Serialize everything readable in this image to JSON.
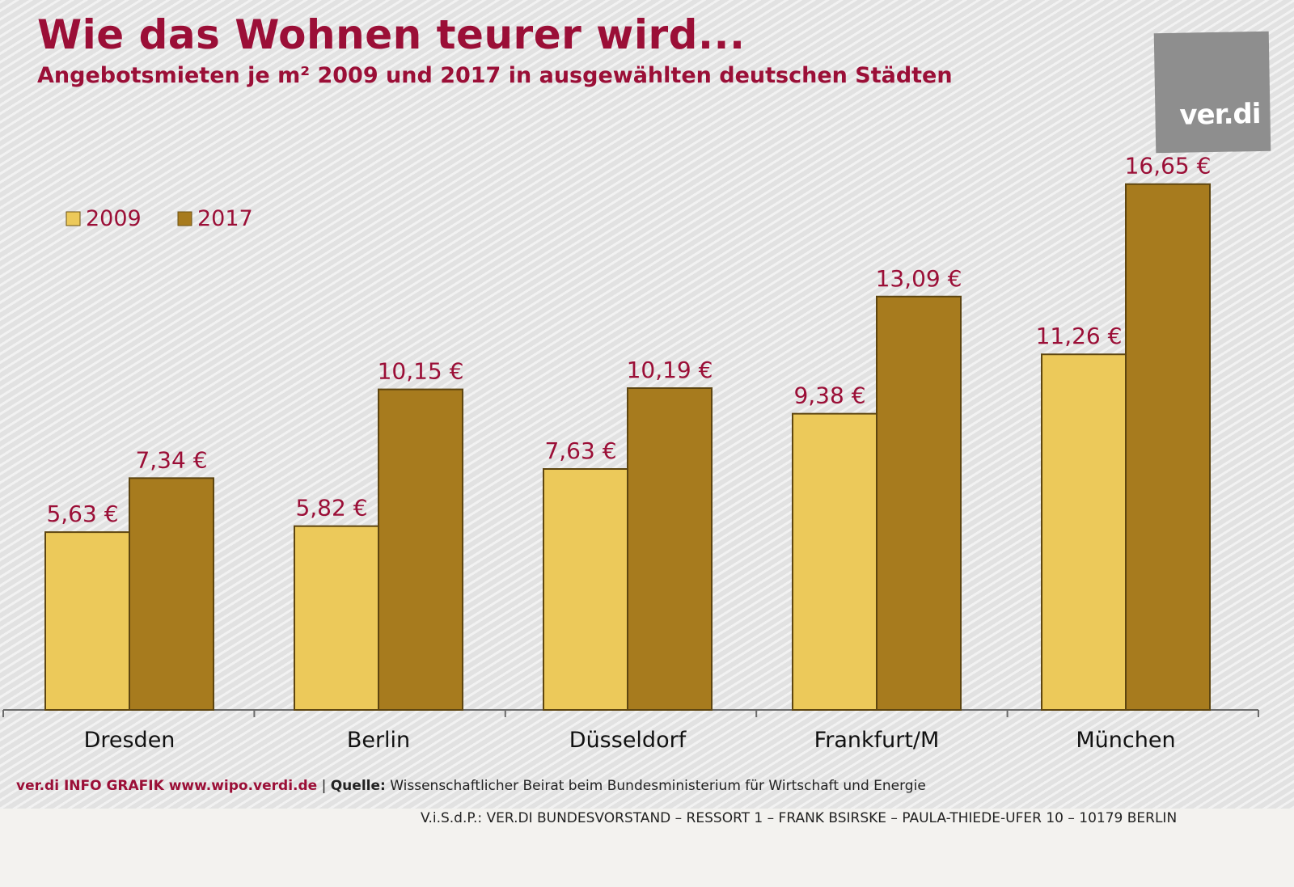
{
  "header": {
    "title": "Wie das Wohnen teurer wird...",
    "subtitle": "Angebotsmieten je m² 2009 und 2017 in ausgewählten deutschen Städten"
  },
  "logo": {
    "text": "ver.di"
  },
  "chart_data": {
    "type": "bar",
    "title": "Wie das Wohnen teurer wird...",
    "subtitle": "Angebotsmieten je m² 2009 und 2017 in ausgewählten deutschen Städten",
    "categories": [
      "Dresden",
      "Berlin",
      "Düsseldorf",
      "Frankfurt/M",
      "München"
    ],
    "series": [
      {
        "name": "2009",
        "color": "#ecc95a",
        "values": [
          5.63,
          5.82,
          7.63,
          9.38,
          11.26
        ],
        "labels": [
          "5,63 €",
          "5,82 €",
          "7,63 €",
          "9,38 €",
          "11,26 €"
        ]
      },
      {
        "name": "2017",
        "color": "#a77b1e",
        "values": [
          7.34,
          10.15,
          10.19,
          13.09,
          16.65
        ],
        "labels": [
          "7,34 €",
          "10,15 €",
          "10,19 €",
          "13,09 €",
          "16,65 €"
        ]
      }
    ],
    "ylim": [
      0,
      18
    ],
    "xlabel": "",
    "ylabel": "",
    "legend": "top-left",
    "grid": false,
    "label_color": "#9b0f37"
  },
  "footer": {
    "brand": "ver.di INFO GRAFIK www.wipo.verdi.de",
    "separator": "|",
    "source_label": "Quelle:",
    "source_text": "Wissenschaftlicher Beirat beim Bundesministerium für Wirtschaft und Energie",
    "imprint": "V.i.S.d.P.: VER.DI BUNDESVORSTAND – RESSORT 1 – FRANK BSIRSKE – PAULA-THIEDE-UFER 10 – 10179 BERLIN"
  }
}
